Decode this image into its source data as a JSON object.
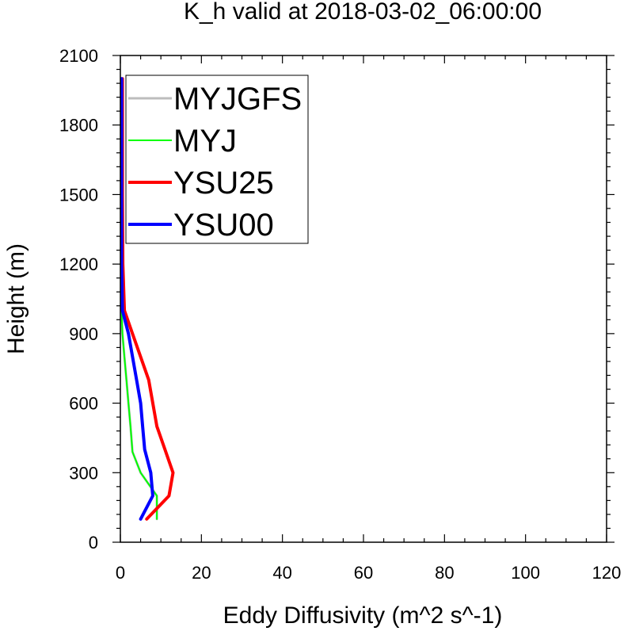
{
  "chart_data": {
    "type": "line",
    "title": "K_h valid at 2018-03-02_06:00:00",
    "xlabel": "Eddy Diffusivity (m^2 s^-1)",
    "ylabel": "Height (m)",
    "xlim": [
      0,
      120
    ],
    "ylim": [
      0,
      2100
    ],
    "xticks": [
      "0",
      "20",
      "40",
      "60",
      "80",
      "100",
      "120"
    ],
    "yticks": [
      "0",
      "300",
      "600",
      "900",
      "1200",
      "1500",
      "1800",
      "2100"
    ],
    "grid": false,
    "legend_position": "top-left",
    "series": [
      {
        "name": "MYJGFS",
        "color": "#bdbdbd",
        "points": [
          {
            "x": 9.0,
            "y": 100
          },
          {
            "x": 9.0,
            "y": 200
          },
          {
            "x": 5.0,
            "y": 300
          },
          {
            "x": 3.0,
            "y": 390
          },
          {
            "x": 2.5,
            "y": 500
          },
          {
            "x": 2.0,
            "y": 600
          },
          {
            "x": 1.5,
            "y": 700
          },
          {
            "x": 1.0,
            "y": 800
          },
          {
            "x": 0.5,
            "y": 900
          },
          {
            "x": 0.3,
            "y": 1000
          },
          {
            "x": 0.2,
            "y": 1200
          },
          {
            "x": 0.2,
            "y": 1500
          },
          {
            "x": 0.2,
            "y": 1800
          },
          {
            "x": 0.2,
            "y": 2000
          }
        ]
      },
      {
        "name": "MYJ",
        "color": "#00ff00",
        "points": [
          {
            "x": 9.0,
            "y": 100
          },
          {
            "x": 9.0,
            "y": 200
          },
          {
            "x": 5.0,
            "y": 300
          },
          {
            "x": 3.0,
            "y": 390
          },
          {
            "x": 2.5,
            "y": 500
          },
          {
            "x": 2.0,
            "y": 600
          },
          {
            "x": 1.5,
            "y": 700
          },
          {
            "x": 1.0,
            "y": 800
          },
          {
            "x": 0.5,
            "y": 900
          },
          {
            "x": 0.3,
            "y": 1000
          },
          {
            "x": 0.2,
            "y": 1200
          },
          {
            "x": 0.2,
            "y": 1500
          },
          {
            "x": 0.2,
            "y": 1800
          },
          {
            "x": 0.2,
            "y": 2000
          }
        ]
      },
      {
        "name": "YSU25",
        "color": "#ff0000",
        "points": [
          {
            "x": 6.5,
            "y": 100
          },
          {
            "x": 12.0,
            "y": 200
          },
          {
            "x": 13.0,
            "y": 300
          },
          {
            "x": 11.0,
            "y": 400
          },
          {
            "x": 9.0,
            "y": 500
          },
          {
            "x": 7.0,
            "y": 700
          },
          {
            "x": 3.0,
            "y": 900
          },
          {
            "x": 1.0,
            "y": 1000
          },
          {
            "x": 0.6,
            "y": 1200
          },
          {
            "x": 0.5,
            "y": 1500
          },
          {
            "x": 0.5,
            "y": 1800
          },
          {
            "x": 0.5,
            "y": 2000
          }
        ]
      },
      {
        "name": "YSU00",
        "color": "#0000ff",
        "points": [
          {
            "x": 5.0,
            "y": 100
          },
          {
            "x": 8.0,
            "y": 200
          },
          {
            "x": 7.5,
            "y": 300
          },
          {
            "x": 6.0,
            "y": 400
          },
          {
            "x": 5.5,
            "y": 500
          },
          {
            "x": 5.0,
            "y": 600
          },
          {
            "x": 4.0,
            "y": 700
          },
          {
            "x": 2.0,
            "y": 900
          },
          {
            "x": 0.5,
            "y": 1000
          },
          {
            "x": 0.3,
            "y": 1200
          },
          {
            "x": 0.3,
            "y": 1500
          },
          {
            "x": 0.3,
            "y": 1800
          },
          {
            "x": 0.3,
            "y": 2000
          }
        ]
      }
    ]
  }
}
